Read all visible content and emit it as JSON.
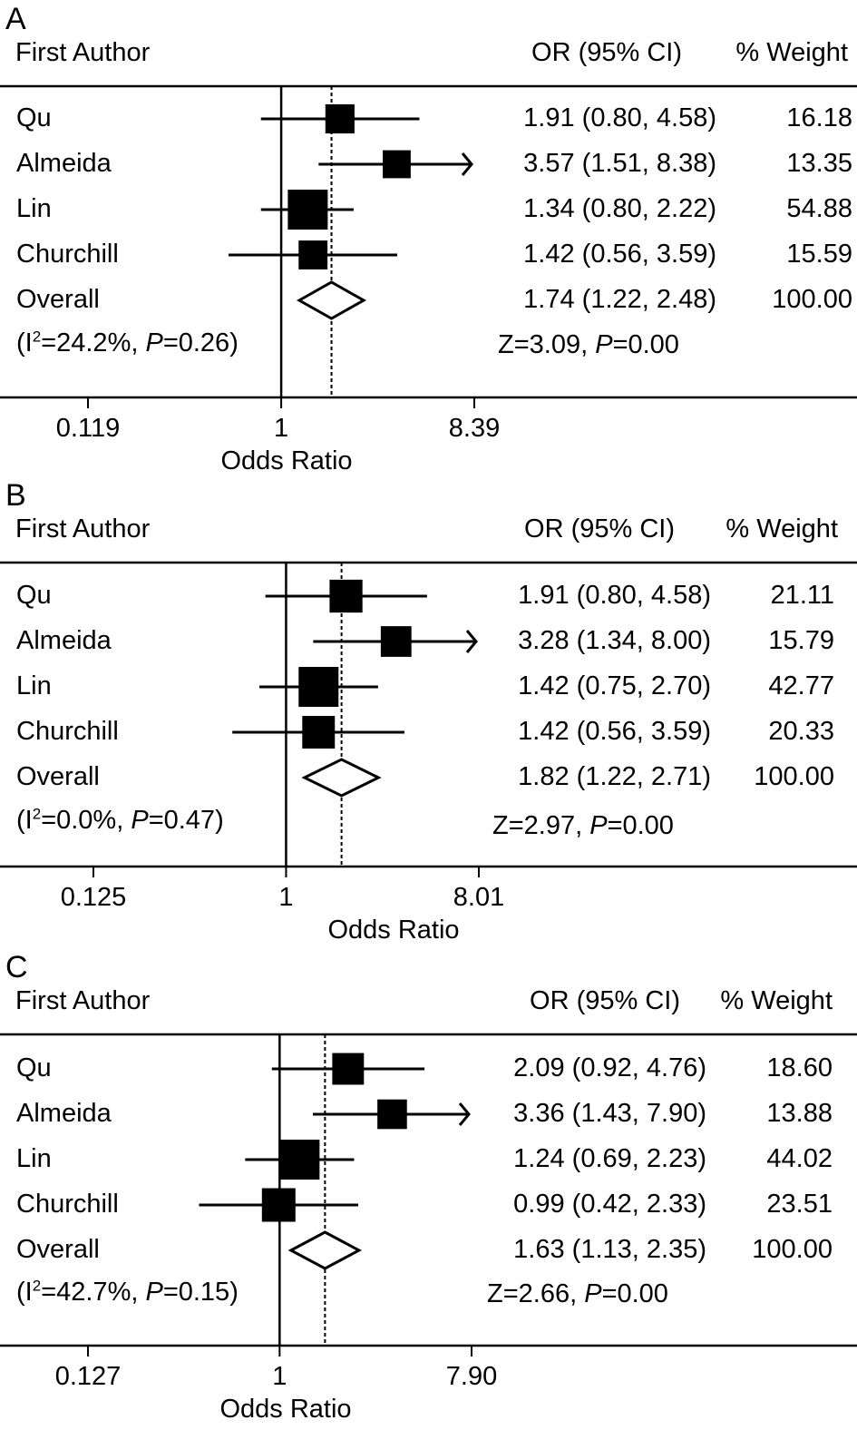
{
  "headers": {
    "first_author": "First Author",
    "or_ci": "OR (95% CI)",
    "weight": "% Weight",
    "xlabel": "Odds Ratio"
  },
  "colors": {
    "foreground": "#000000",
    "background": "#ffffff"
  },
  "chart_data": [
    {
      "type": "forest",
      "panel": "A",
      "xscale": "log",
      "xticks": [
        0.119,
        1,
        8.39
      ],
      "xtick_labels": [
        "0.119",
        "1",
        "8.39"
      ],
      "xlabel": "Odds Ratio",
      "null_line": 1,
      "studies": [
        {
          "name": "Qu",
          "or": 1.91,
          "lo": 0.8,
          "hi": 4.58,
          "ci_text": "1.91 (0.80, 4.58)",
          "weight": 16.18,
          "weight_text": "16.18"
        },
        {
          "name": "Almeida",
          "or": 3.57,
          "lo": 1.51,
          "hi": 8.38,
          "ci_text": "3.57 (1.51, 8.38)",
          "weight": 13.35,
          "weight_text": "13.35"
        },
        {
          "name": "Lin",
          "or": 1.34,
          "lo": 0.8,
          "hi": 2.22,
          "ci_text": "1.34 (0.80, 2.22)",
          "weight": 54.88,
          "weight_text": "54.88"
        },
        {
          "name": "Churchill",
          "or": 1.42,
          "lo": 0.56,
          "hi": 3.59,
          "ci_text": "1.42 (0.56, 3.59)",
          "weight": 15.59,
          "weight_text": "15.59"
        }
      ],
      "overall": {
        "name": "Overall",
        "or": 1.74,
        "lo": 1.22,
        "hi": 2.48,
        "ci_text": "1.74 (1.22, 2.48)",
        "weight_text": "100.00"
      },
      "heterogeneity": {
        "prefix": "(I",
        "sup": "2",
        "value": "=24.2%, ",
        "p_label": "P",
        "p_value": "=0.26)"
      },
      "test": {
        "z": "Z=3.09, ",
        "p_label": "P",
        "p_value": "=0.00"
      }
    },
    {
      "type": "forest",
      "panel": "B",
      "xscale": "log",
      "xticks": [
        0.125,
        1,
        8.01
      ],
      "xtick_labels": [
        "0.125",
        "1",
        "8.01"
      ],
      "xlabel": "Odds Ratio",
      "null_line": 1,
      "studies": [
        {
          "name": "Qu",
          "or": 1.91,
          "lo": 0.8,
          "hi": 4.58,
          "ci_text": "1.91 (0.80, 4.58)",
          "weight": 21.11,
          "weight_text": "21.11"
        },
        {
          "name": "Almeida",
          "or": 3.28,
          "lo": 1.34,
          "hi": 8.0,
          "ci_text": "3.28 (1.34, 8.00)",
          "weight": 15.79,
          "weight_text": "15.79"
        },
        {
          "name": "Lin",
          "or": 1.42,
          "lo": 0.75,
          "hi": 2.7,
          "ci_text": "1.42 (0.75, 2.70)",
          "weight": 42.77,
          "weight_text": "42.77"
        },
        {
          "name": "Churchill",
          "or": 1.42,
          "lo": 0.56,
          "hi": 3.59,
          "ci_text": "1.42 (0.56, 3.59)",
          "weight": 20.33,
          "weight_text": "20.33"
        }
      ],
      "overall": {
        "name": "Overall",
        "or": 1.82,
        "lo": 1.22,
        "hi": 2.71,
        "ci_text": "1.82 (1.22, 2.71)",
        "weight_text": "100.00"
      },
      "heterogeneity": {
        "prefix": "(I",
        "sup": "2",
        "value": "=0.0%, ",
        "p_label": "P",
        "p_value": "=0.47)"
      },
      "test": {
        "z": "Z=2.97, ",
        "p_label": "P",
        "p_value": "=0.00"
      }
    },
    {
      "type": "forest",
      "panel": "C",
      "xscale": "log",
      "xticks": [
        0.127,
        1,
        7.9
      ],
      "xtick_labels": [
        "0.127",
        "1",
        "7.90"
      ],
      "xlabel": "Odds Ratio",
      "null_line": 1,
      "studies": [
        {
          "name": "Qu",
          "or": 2.09,
          "lo": 0.92,
          "hi": 4.76,
          "ci_text": "2.09 (0.92, 4.76)",
          "weight": 18.6,
          "weight_text": "18.60"
        },
        {
          "name": "Almeida",
          "or": 3.36,
          "lo": 1.43,
          "hi": 7.9,
          "ci_text": "3.36 (1.43, 7.90)",
          "weight": 13.88,
          "weight_text": "13.88"
        },
        {
          "name": "Lin",
          "or": 1.24,
          "lo": 0.69,
          "hi": 2.23,
          "ci_text": "1.24 (0.69, 2.23)",
          "weight": 44.02,
          "weight_text": "44.02"
        },
        {
          "name": "Churchill",
          "or": 0.99,
          "lo": 0.42,
          "hi": 2.33,
          "ci_text": "0.99 (0.42, 2.33)",
          "weight": 23.51,
          "weight_text": "23.51"
        }
      ],
      "overall": {
        "name": "Overall",
        "or": 1.63,
        "lo": 1.13,
        "hi": 2.35,
        "ci_text": "1.63 (1.13, 2.35)",
        "weight_text": "100.00"
      },
      "heterogeneity": {
        "prefix": "(I",
        "sup": "2",
        "value": "=42.7%, ",
        "p_label": "P",
        "p_value": "=0.15)"
      },
      "test": {
        "z": "Z=2.66, ",
        "p_label": "P",
        "p_value": "=0.00"
      }
    }
  ]
}
